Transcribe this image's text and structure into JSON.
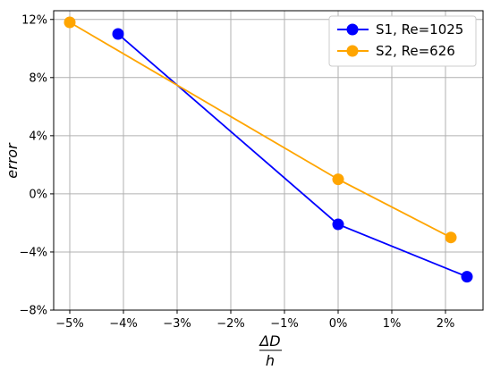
{
  "chart_data": {
    "type": "line",
    "xlabel_num": "ΔD",
    "xlabel_den": "h",
    "ylabel": "error",
    "xlim": [
      -5.3,
      2.7
    ],
    "ylim": [
      -8,
      12.6
    ],
    "x_ticks": [
      -5,
      -4,
      -3,
      -2,
      -1,
      0,
      1,
      2
    ],
    "x_tick_labels": [
      "−5%",
      "−4%",
      "−3%",
      "−2%",
      "−1%",
      "0%",
      "1%",
      "2%"
    ],
    "y_ticks": [
      -8,
      -4,
      0,
      4,
      8,
      12
    ],
    "y_tick_labels": [
      "−8%",
      "−4%",
      "0%",
      "4%",
      "8%",
      "12%"
    ],
    "grid": true,
    "legend_position": "top-right",
    "series": [
      {
        "name": "S1, Re=1025",
        "color": "#0000ff",
        "x": [
          -4.1,
          0.0,
          2.4
        ],
        "y": [
          11.0,
          -2.1,
          -5.7
        ]
      },
      {
        "name": "S2, Re=626",
        "color": "#ffa500",
        "x": [
          -5.0,
          0.0,
          2.1
        ],
        "y": [
          11.8,
          1.0,
          -3.0
        ]
      }
    ]
  }
}
